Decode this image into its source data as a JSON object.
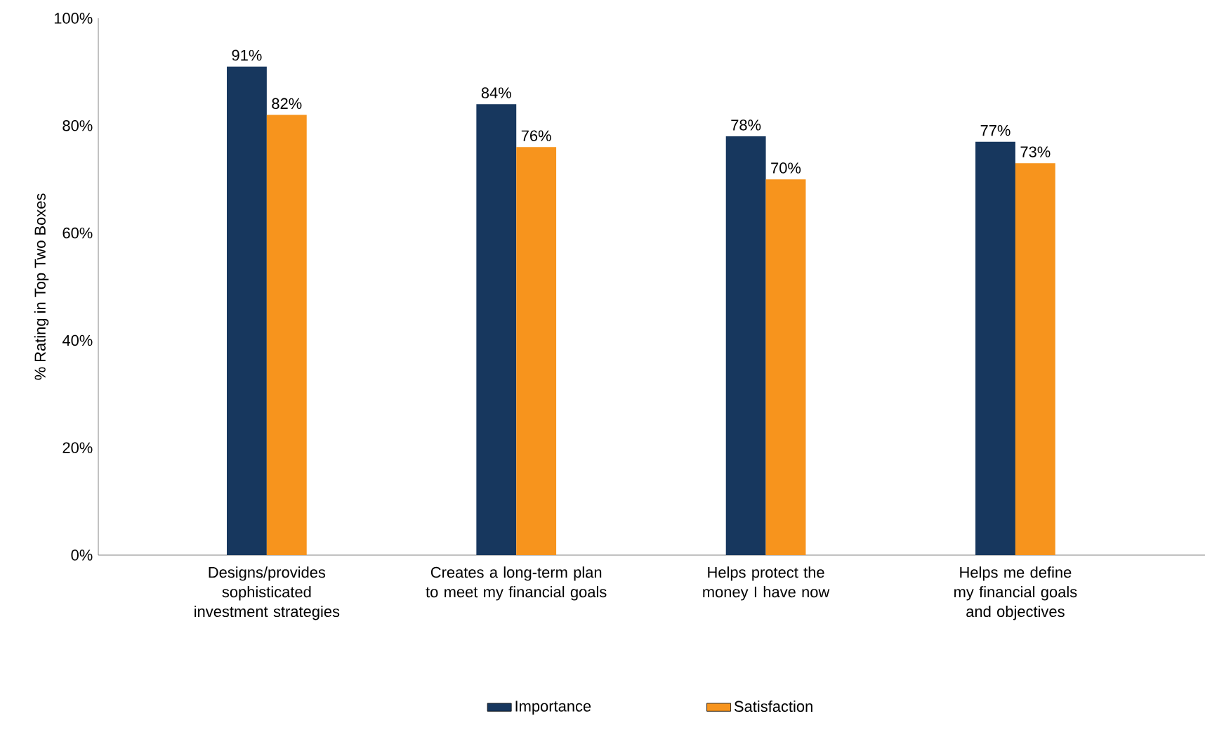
{
  "chart_data": {
    "type": "bar",
    "ylabel": "% Rating in Top Two Boxes",
    "categories": [
      "Designs/provides sophisticated investment strategies",
      "Creates a long-term plan to meet my financial goals",
      "Helps protect the money I have now",
      "Helps me define my financial goals and objectives"
    ],
    "series": [
      {
        "name": "Importance",
        "color": "#17375e",
        "values": [
          91,
          84,
          78,
          77
        ],
        "value_labels": [
          "91%",
          "84%",
          "78%",
          "77%"
        ]
      },
      {
        "name": "Satisfaction",
        "color": "#f7941d",
        "values": [
          82,
          76,
          70,
          73
        ],
        "value_labels": [
          "82%",
          "76%",
          "70%",
          "73%"
        ]
      }
    ],
    "ylim": [
      0,
      100
    ],
    "yticks": [
      {
        "value": 0,
        "label": "0%"
      },
      {
        "value": 20,
        "label": "20%"
      },
      {
        "value": 40,
        "label": "40%"
      },
      {
        "value": 60,
        "label": "60%"
      },
      {
        "value": 80,
        "label": "80%"
      },
      {
        "value": 100,
        "label": "100%"
      }
    ],
    "legend": "bottom"
  }
}
